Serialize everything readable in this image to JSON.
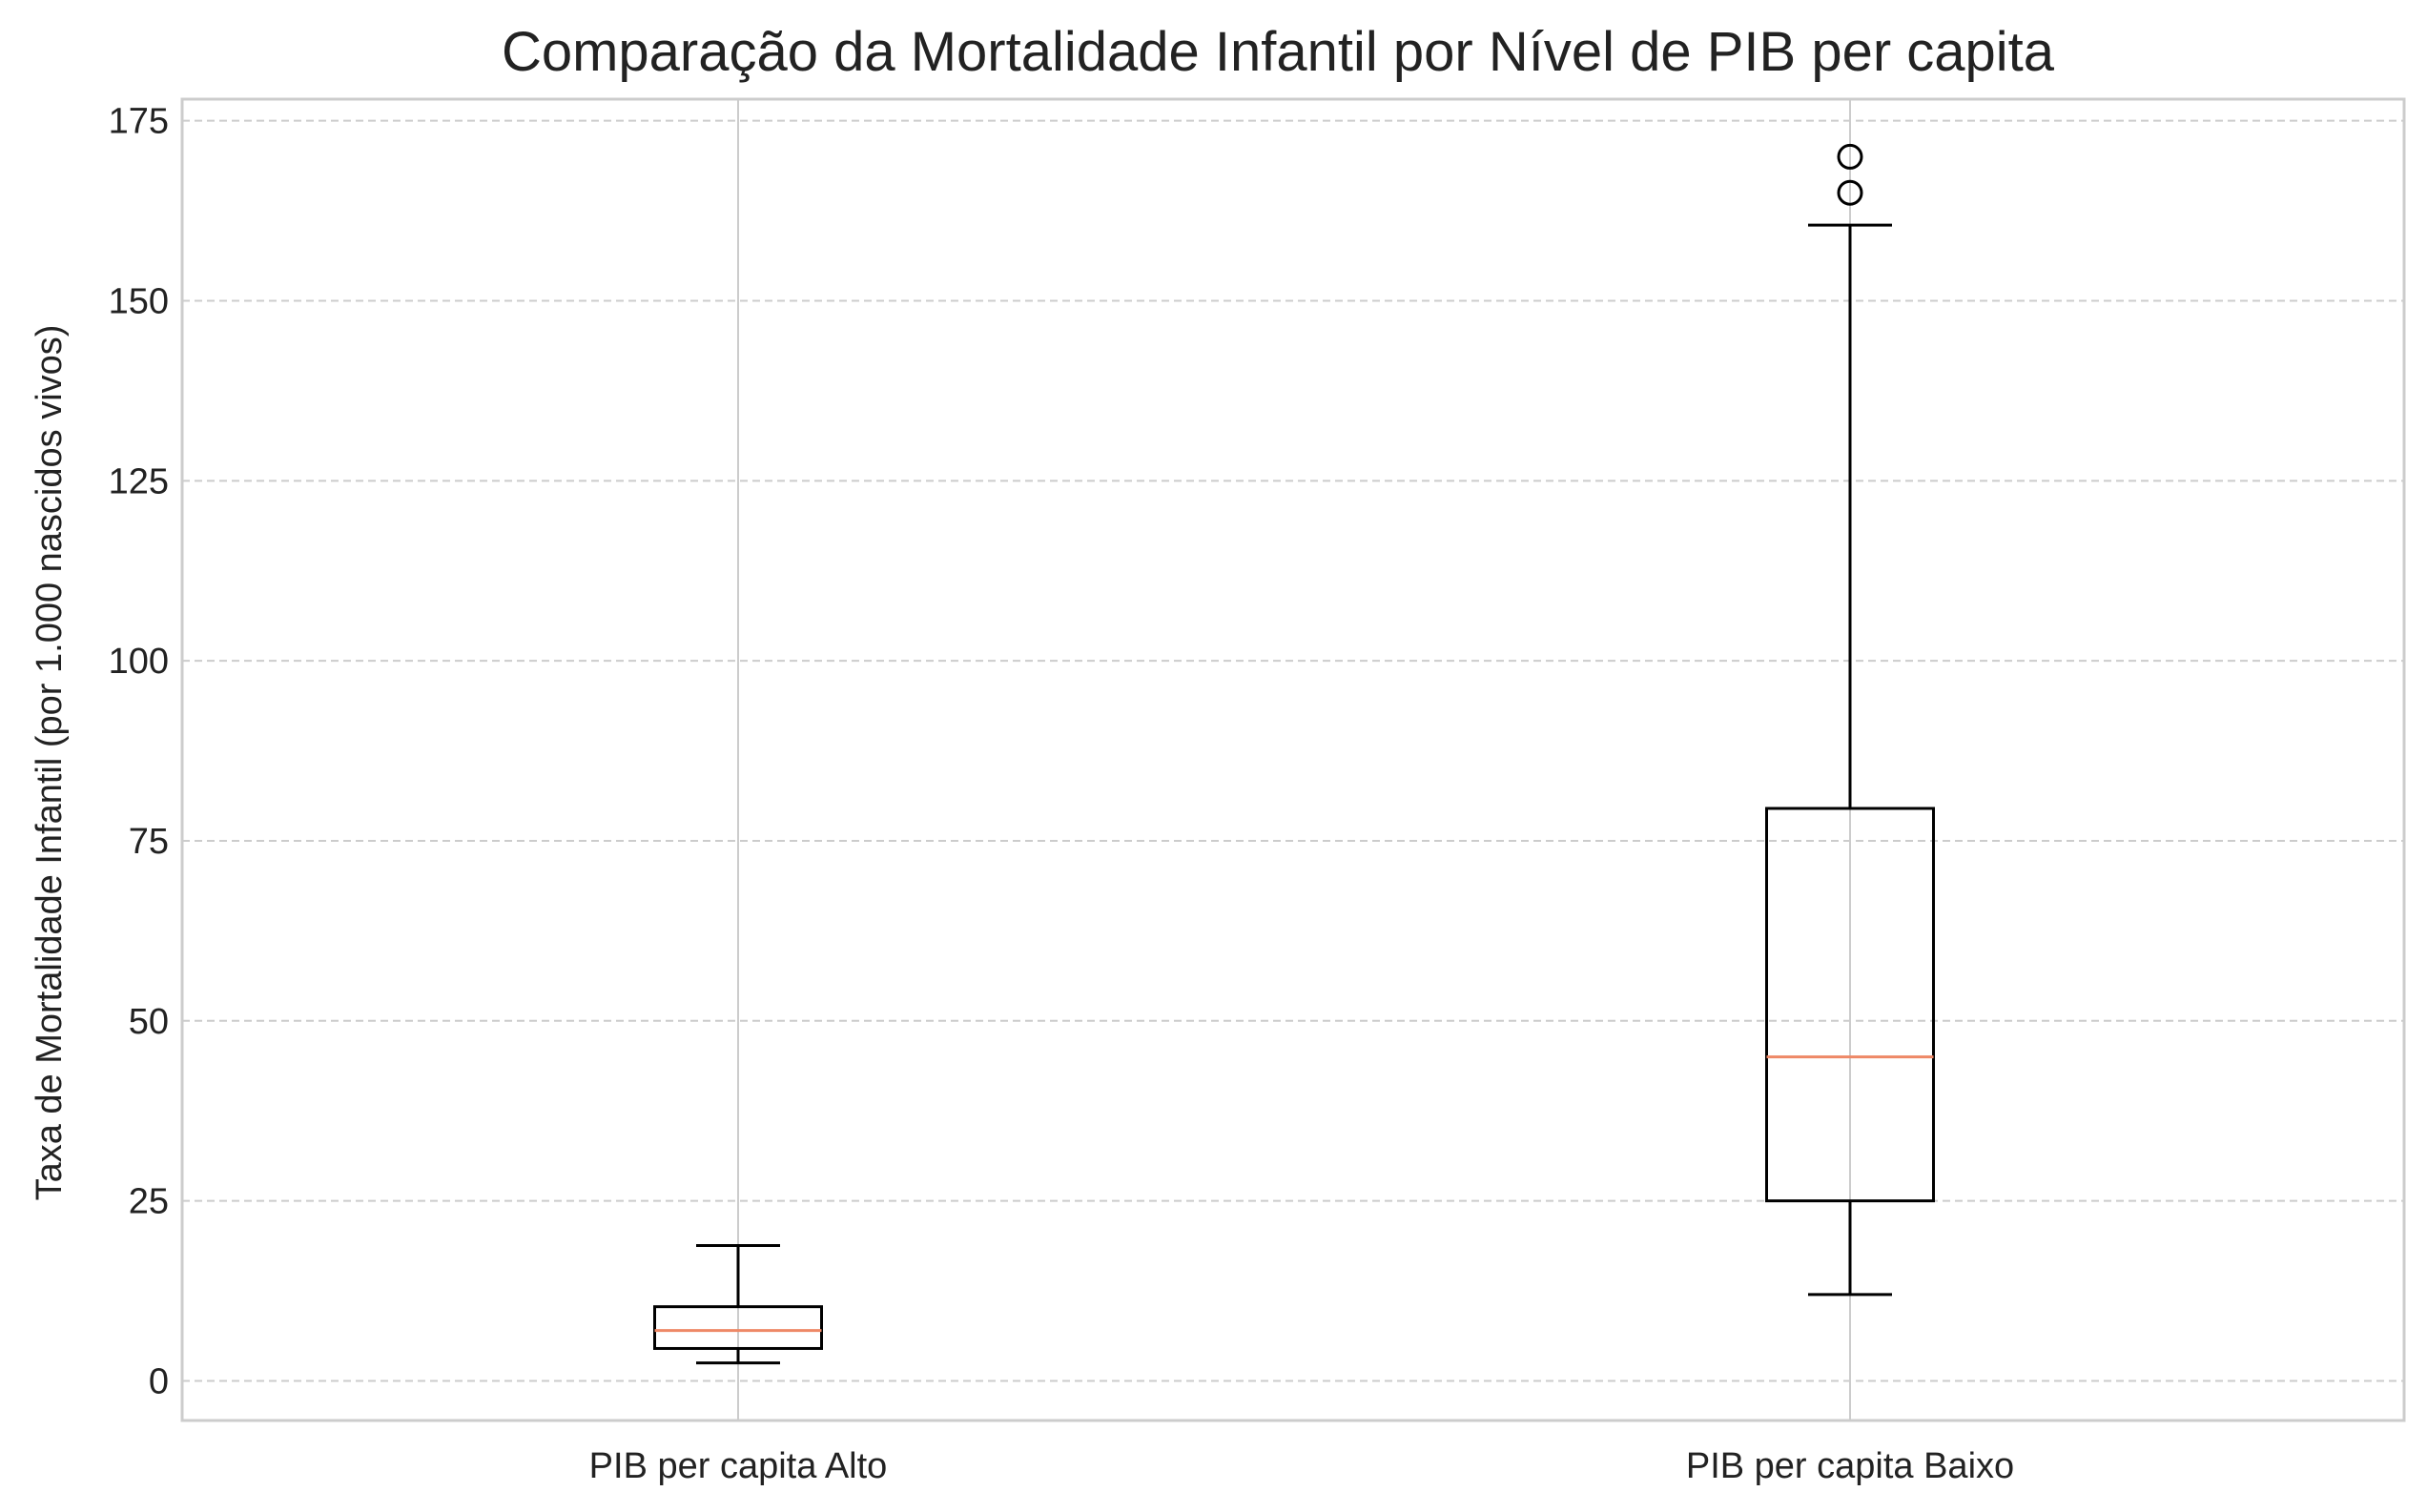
{
  "chart_data": {
    "type": "box",
    "title": "Comparação da Mortalidade Infantil por Nível de PIB per capita",
    "xlabel": "",
    "ylabel": "Taxa de Mortalidade Infantil (por 1.000 nascidos vivos)",
    "ylim": [
      -5.5,
      178
    ],
    "yticks": [
      0,
      25,
      50,
      75,
      100,
      125,
      150,
      175
    ],
    "grid": {
      "y": true,
      "x": true,
      "y_style": "dashed",
      "x_style": "solid"
    },
    "categories": [
      "PIB per capita Alto",
      "PIB per capita Baixo"
    ],
    "boxes": [
      {
        "label": "PIB per capita Alto",
        "whisker_low": 2.5,
        "q1": 4.5,
        "median": 7.0,
        "q3": 10.3,
        "whisker_high": 18.8,
        "outliers": []
      },
      {
        "label": "PIB per capita Baixo",
        "whisker_low": 12.0,
        "q1": 25.0,
        "median": 45.0,
        "q3": 79.5,
        "whisker_high": 160.5,
        "outliers": [
          165.0,
          170.0
        ]
      }
    ],
    "colors": {
      "box": "#000000",
      "median": "#ee8866",
      "grid": "#cccccc",
      "frame": "#cccccc",
      "text": "#222222"
    }
  }
}
